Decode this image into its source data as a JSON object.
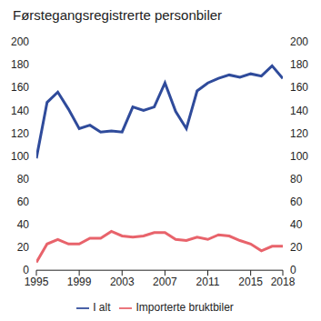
{
  "chart_data": {
    "type": "line",
    "title": "Førstegangsregistrerte personbiler",
    "x": [
      1995,
      1996,
      1997,
      1998,
      1999,
      2000,
      2001,
      2002,
      2003,
      2004,
      2005,
      2006,
      2007,
      2008,
      2009,
      2010,
      2011,
      2012,
      2013,
      2014,
      2015,
      2016,
      2017,
      2018
    ],
    "series": [
      {
        "name": "I alt",
        "color": "#2f4b9b",
        "values": [
          98,
          147,
          156,
          141,
          124,
          127,
          121,
          122,
          121,
          143,
          140,
          143,
          164,
          139,
          124,
          157,
          164,
          168,
          171,
          169,
          172,
          170,
          179,
          168
        ]
      },
      {
        "name": "Importerte bruktbiler",
        "color": "#e8636b",
        "values": [
          7,
          23,
          27,
          23,
          23,
          28,
          28,
          34,
          30,
          29,
          30,
          33,
          33,
          27,
          26,
          29,
          27,
          31,
          30,
          26,
          23,
          17,
          21,
          21
        ]
      }
    ],
    "xlim": [
      1995,
      2018
    ],
    "xticks": [
      1995,
      1999,
      2003,
      2007,
      2011,
      2015,
      2018
    ],
    "ylim": [
      0,
      200
    ],
    "yticks": [
      0,
      20,
      40,
      60,
      80,
      100,
      120,
      140,
      160,
      180,
      200
    ],
    "y2lim": [
      0,
      200
    ],
    "y2ticks": [
      0,
      20,
      40,
      60,
      80,
      100,
      120,
      140,
      160,
      180,
      200
    ],
    "grid": false,
    "legend": "bottom"
  }
}
